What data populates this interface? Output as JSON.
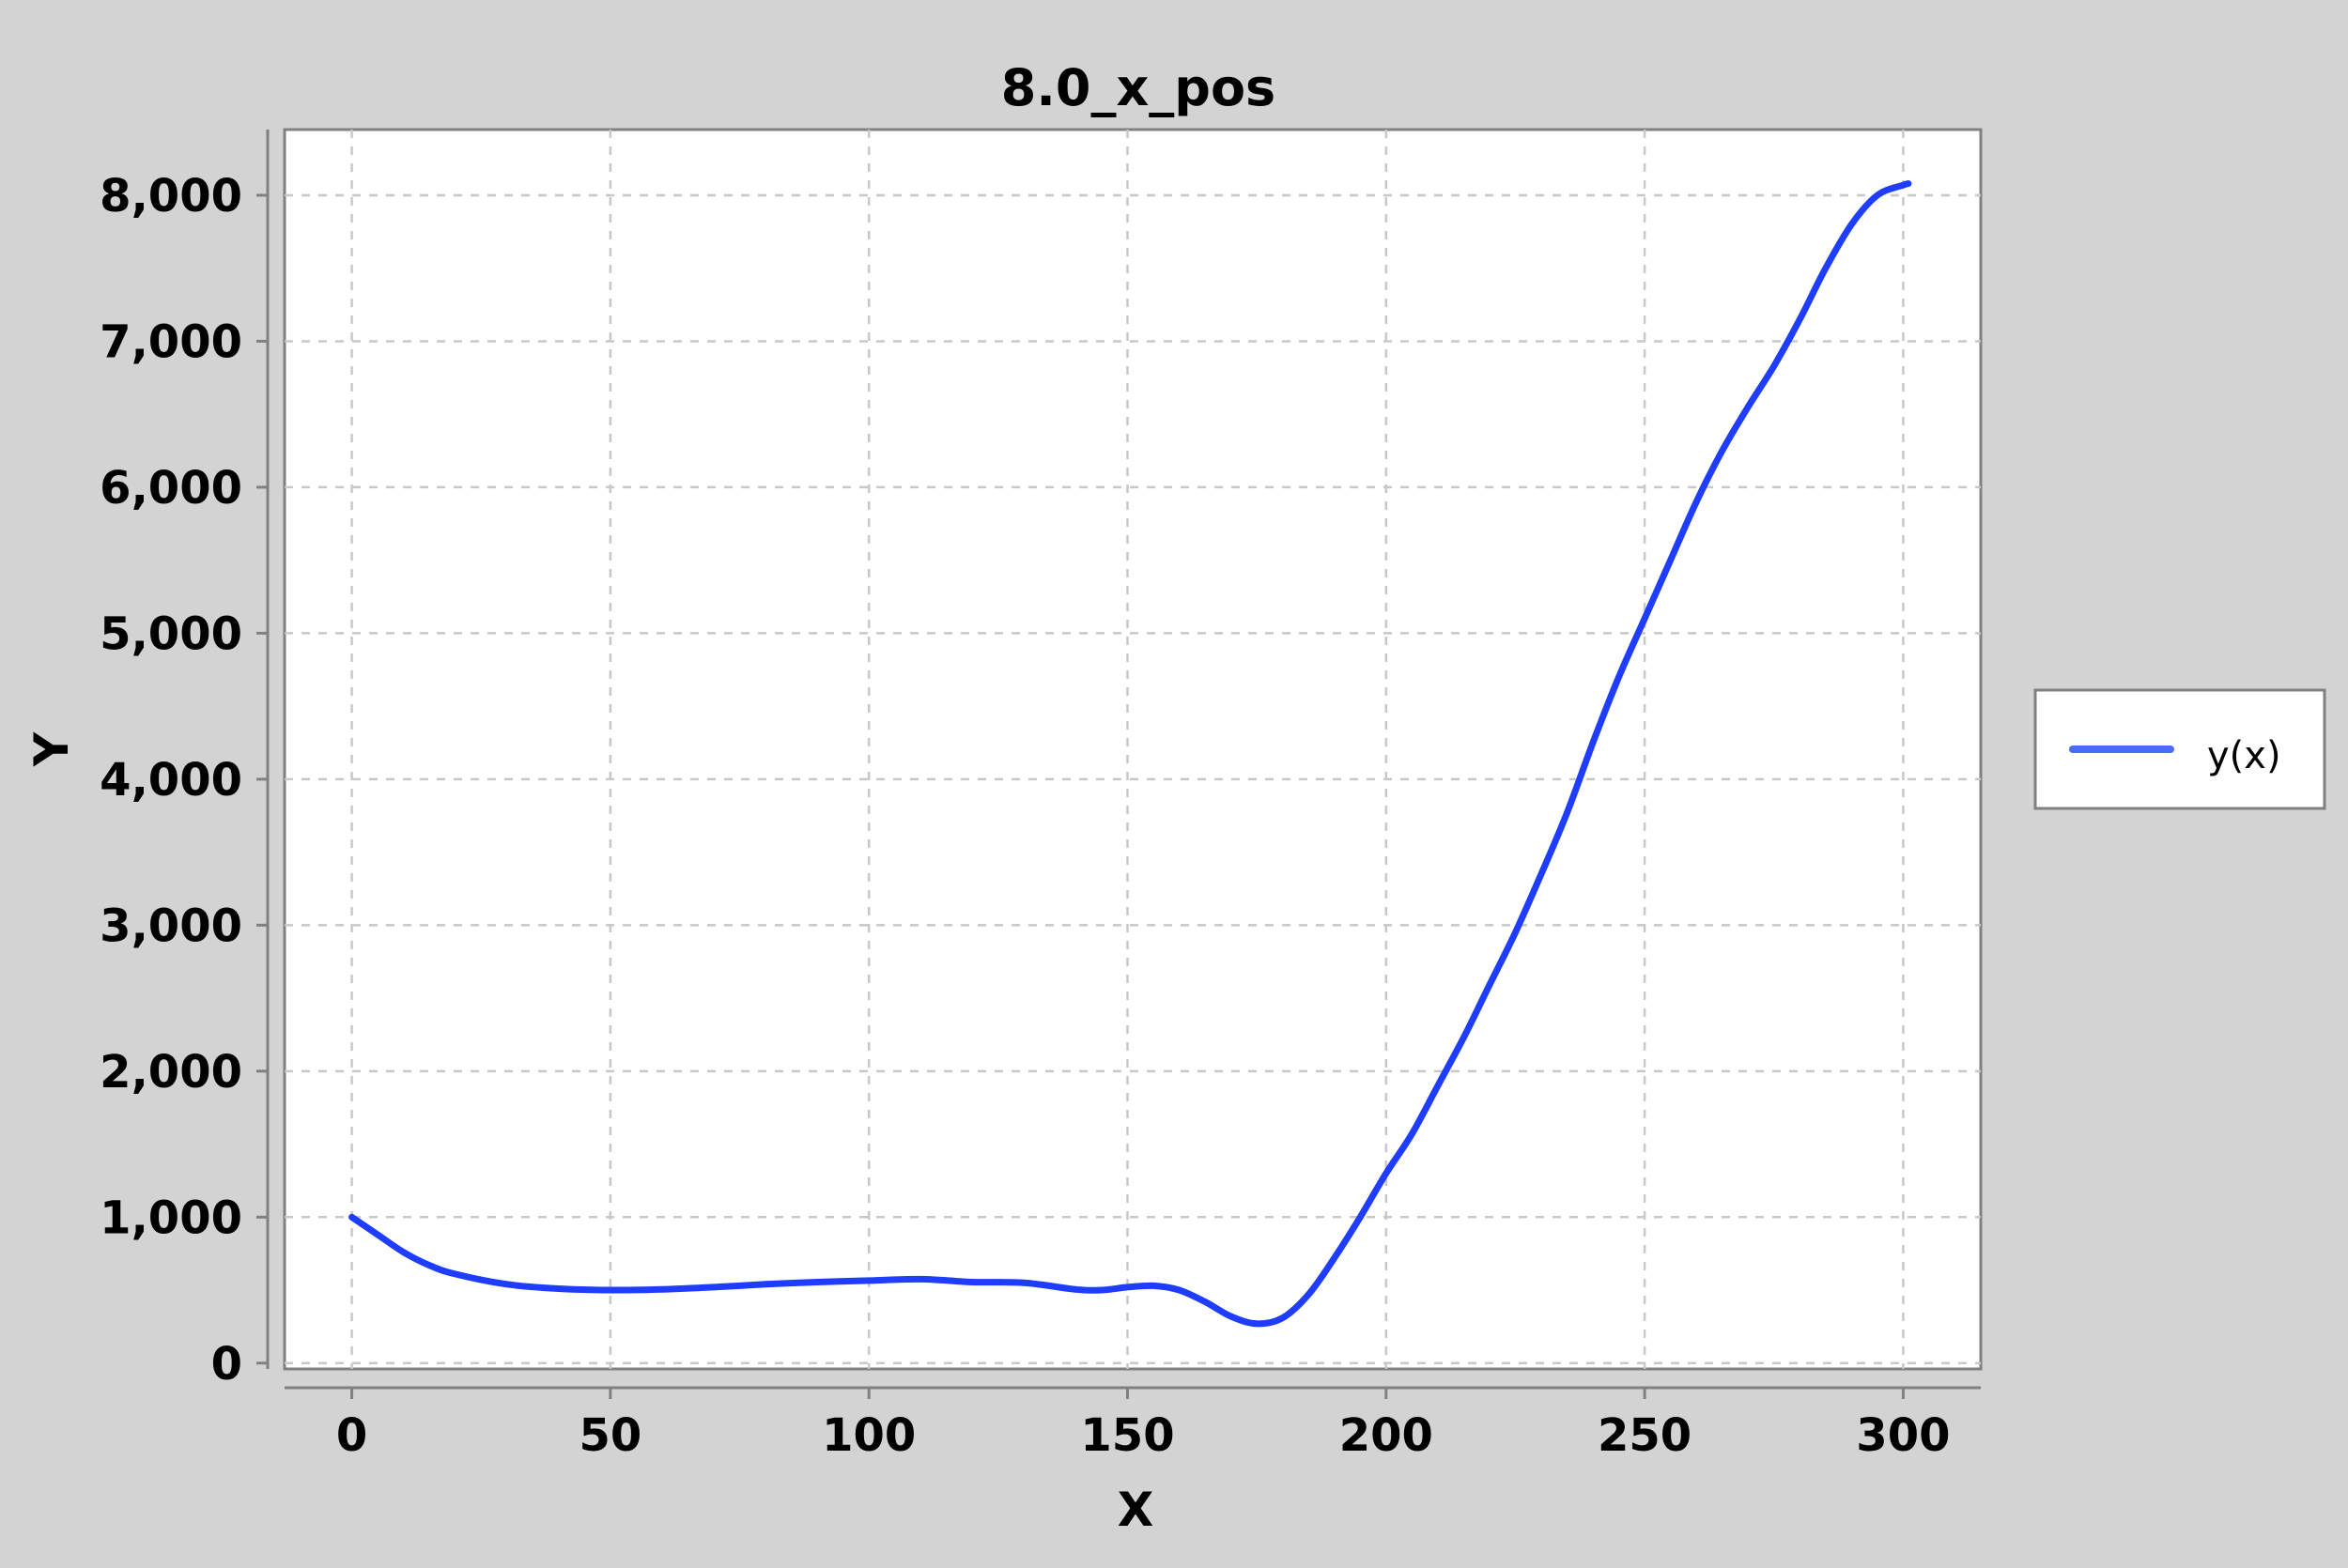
{
  "chart_data": {
    "type": "line",
    "title": "8.0_x_pos",
    "xlabel": "X",
    "ylabel": "Y",
    "xlim": [
      -13,
      315
    ],
    "ylim": [
      -40,
      8450
    ],
    "x_ticks": [
      0,
      50,
      100,
      150,
      200,
      250,
      300
    ],
    "x_tick_labels": [
      "0",
      "50",
      "100",
      "150",
      "200",
      "250",
      "300"
    ],
    "y_ticks": [
      0,
      1000,
      2000,
      3000,
      4000,
      5000,
      6000,
      7000,
      8000
    ],
    "y_tick_labels": [
      "0",
      "1,000",
      "2,000",
      "3,000",
      "4,000",
      "5,000",
      "6,000",
      "7,000",
      "8,000"
    ],
    "grid": true,
    "legend_position": "right",
    "series": [
      {
        "name": "y(x)",
        "color": "#1f3dff",
        "legend_color": "#4a6cf7",
        "x": [
          0,
          5,
          10,
          15,
          20,
          30,
          40,
          50,
          60,
          70,
          80,
          90,
          100,
          110,
          120,
          130,
          140,
          145,
          150,
          155,
          160,
          165,
          170,
          175,
          180,
          185,
          190,
          195,
          200,
          205,
          210,
          215,
          220,
          225,
          230,
          235,
          240,
          245,
          250,
          255,
          260,
          265,
          270,
          275,
          280,
          285,
          290,
          295,
          300,
          301
        ],
        "values": [
          1000,
          880,
          760,
          670,
          610,
          540,
          510,
          500,
          505,
          520,
          540,
          555,
          565,
          575,
          555,
          550,
          505,
          500,
          520,
          530,
          500,
          420,
          320,
          270,
          310,
          470,
          720,
          1000,
          1300,
          1570,
          1900,
          2230,
          2590,
          2950,
          3350,
          3770,
          4250,
          4700,
          5100,
          5500,
          5900,
          6250,
          6550,
          6830,
          7150,
          7500,
          7800,
          8000,
          8070,
          8080
        ]
      }
    ]
  }
}
